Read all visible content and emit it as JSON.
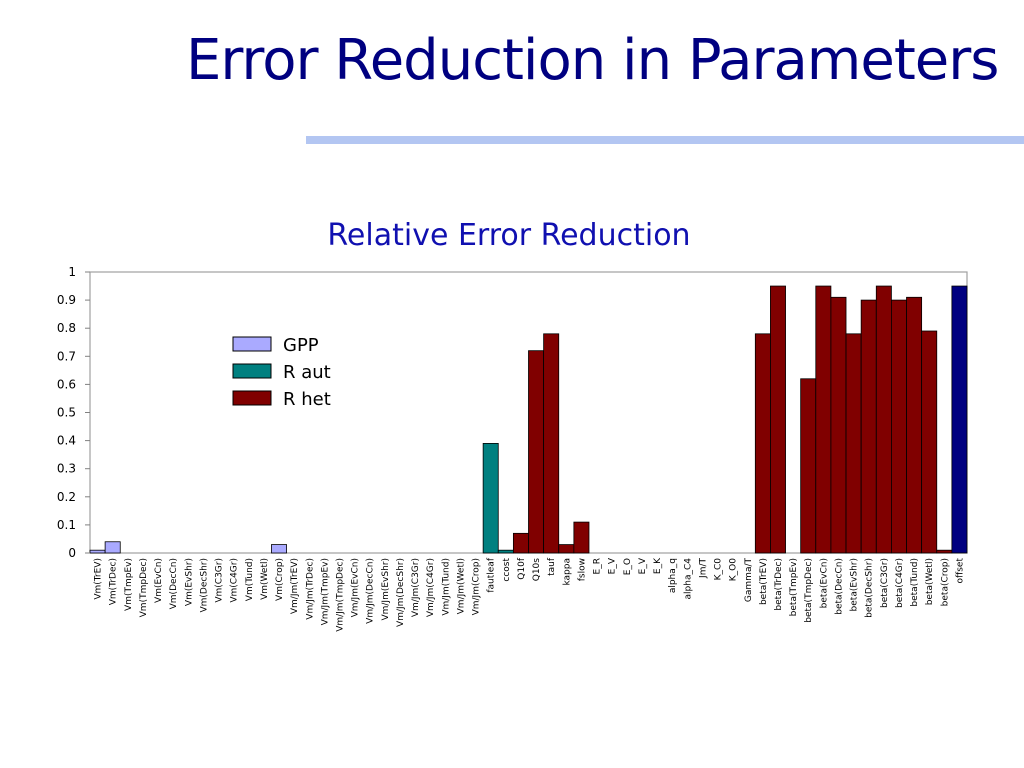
{
  "slide": {
    "title": "Error Reduction in Parameters"
  },
  "colors": {
    "title": "#000080",
    "underline": "#b3c6f2",
    "chart_title": "#1010b0",
    "gpp": "#aaaaff",
    "raut": "#008080",
    "rhet": "#800000",
    "offset": "#000080"
  },
  "chart_data": {
    "type": "bar",
    "title": "Relative Error Reduction",
    "xlabel": "",
    "ylabel": "",
    "ylim": [
      0,
      1
    ],
    "yticks": [
      0,
      0.1,
      0.2,
      0.3,
      0.4,
      0.5,
      0.6,
      0.7,
      0.8,
      0.9,
      1
    ],
    "ytick_labels": [
      "0",
      "0.1",
      "0.2",
      "0.3",
      "0.4",
      "0.5",
      "0.6",
      "0.7",
      "0.8",
      "0.9",
      "1"
    ],
    "grid": false,
    "legend": {
      "placement": "upper-left",
      "entries": [
        {
          "name": "GPP",
          "key": "gpp"
        },
        {
          "name": "R aut",
          "key": "raut"
        },
        {
          "name": "R het",
          "key": "rhet"
        }
      ]
    },
    "categories": [
      "Vm(TrEV)",
      "Vm(TrDec)",
      "Vm(TmpEv)",
      "Vm(TmpDec)",
      "Vm(EvCn)",
      "Vm(DecCn)",
      "Vm(EvShr)",
      "Vm(DecShr)",
      "Vm(C3Gr)",
      "Vm(C4Gr)",
      "Vm(Tund)",
      "Vm(Wetl)",
      "Vm(Crop)",
      "Vm/Jm(TrEV)",
      "Vm/Jm(TrDec)",
      "Vm/Jm(TmpEv)",
      "Vm/Jm(TmpDec)",
      "Vm/Jm(EvCn)",
      "Vm/Jm(DecCn)",
      "Vm/Jm(EvShr)",
      "Vm/Jm(DecShr)",
      "Vm/Jm(C3Gr)",
      "Vm/Jm(C4Gr)",
      "Vm/Jm(Tund)",
      "Vm/Jm(Wetl)",
      "Vm/Jm(Crop)",
      "fautleaf",
      "ccost",
      "Q10f",
      "Q10s",
      "tauf",
      "kappa",
      "fslow",
      "E_R",
      "E_V",
      "E_O",
      "E_V",
      "E_K",
      "alpha_q",
      "alpha_C4",
      "Jm/T",
      "K_C0",
      "K_O0",
      "Gamma/T",
      "beta(TrEV)",
      "beta(TrDec)",
      "beta(TmpEv)",
      "beta(TmpDec)",
      "beta(EvCn)",
      "beta(DecCn)",
      "beta(EvShr)",
      "beta(DecShr)",
      "beta(C3Gr)",
      "beta(C4Gr)",
      "beta(Tund)",
      "beta(Wetl)",
      "beta(Crop)",
      "offset"
    ],
    "series": [
      {
        "name": "GPP",
        "values": [
          0.01,
          0.04,
          0,
          0,
          0,
          0,
          0,
          0,
          0,
          0,
          0,
          0,
          0.03,
          0,
          0,
          0,
          0,
          0,
          0,
          0,
          0,
          0,
          0,
          0,
          0,
          0,
          0,
          0,
          0,
          0,
          0,
          0,
          0,
          0,
          0,
          0,
          0,
          0,
          0,
          0,
          0,
          0,
          0,
          0,
          0,
          0,
          0,
          0,
          0,
          0,
          0,
          0,
          0,
          0,
          0,
          0,
          0,
          0
        ]
      },
      {
        "name": "R aut",
        "values": [
          0,
          0,
          0,
          0,
          0,
          0,
          0,
          0,
          0,
          0,
          0,
          0,
          0,
          0,
          0,
          0,
          0,
          0,
          0,
          0,
          0,
          0,
          0,
          0,
          0,
          0,
          0.39,
          0.01,
          0,
          0,
          0,
          0,
          0,
          0,
          0,
          0,
          0,
          0,
          0,
          0,
          0,
          0,
          0,
          0,
          0,
          0,
          0,
          0,
          0,
          0,
          0,
          0,
          0,
          0,
          0,
          0,
          0,
          0
        ]
      },
      {
        "name": "R het",
        "values": [
          0,
          0,
          0,
          0,
          0,
          0,
          0,
          0,
          0,
          0,
          0,
          0,
          0,
          0,
          0,
          0,
          0,
          0,
          0,
          0,
          0,
          0,
          0,
          0,
          0,
          0,
          0,
          0,
          0.07,
          0.72,
          0.78,
          0.03,
          0.11,
          0,
          0,
          0,
          0,
          0,
          0,
          0,
          0,
          0,
          0,
          0,
          0.78,
          0.95,
          0,
          0.62,
          0.95,
          0.91,
          0.78,
          0.9,
          0.95,
          0.9,
          0.91,
          0.79,
          0.01,
          0
        ]
      },
      {
        "name": "offset",
        "values": [
          0,
          0,
          0,
          0,
          0,
          0,
          0,
          0,
          0,
          0,
          0,
          0,
          0,
          0,
          0,
          0,
          0,
          0,
          0,
          0,
          0,
          0,
          0,
          0,
          0,
          0,
          0,
          0,
          0,
          0,
          0,
          0,
          0,
          0,
          0,
          0,
          0,
          0,
          0,
          0,
          0,
          0,
          0,
          0,
          0,
          0,
          0,
          0,
          0,
          0,
          0,
          0,
          0,
          0,
          0,
          0,
          0,
          0.95
        ]
      }
    ],
    "series_colors": [
      "gpp",
      "raut",
      "rhet",
      "offset"
    ]
  }
}
